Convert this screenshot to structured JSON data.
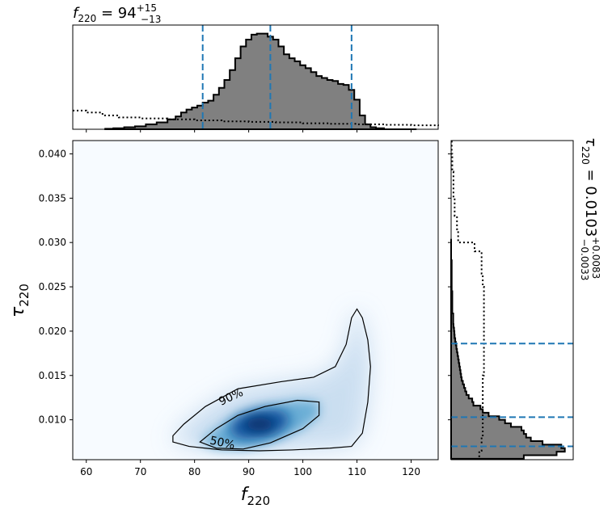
{
  "chart_data": [
    {
      "type": "area",
      "panel": "top-marginal",
      "title": "f_220 = 94 +15 −13",
      "title_parts": {
        "sym": "f",
        "sub": "220",
        "eq": " = 94",
        "sup": "+15",
        "inf": "−13"
      },
      "x_range": [
        57.5,
        125
      ],
      "posterior": {
        "x": [
          64,
          66,
          68,
          70,
          72,
          74,
          76,
          77,
          78,
          79,
          80,
          81,
          82,
          83,
          84,
          85,
          86,
          87,
          88,
          89,
          90,
          91,
          92,
          93,
          94,
          95,
          96,
          97,
          98,
          99,
          100,
          101,
          102,
          103,
          104,
          105,
          106,
          107,
          108,
          109,
          110,
          111,
          112,
          113,
          114,
          116,
          118,
          120
        ],
        "density": [
          0.005,
          0.01,
          0.02,
          0.03,
          0.05,
          0.07,
          0.1,
          0.13,
          0.17,
          0.2,
          0.22,
          0.24,
          0.27,
          0.29,
          0.35,
          0.42,
          0.5,
          0.6,
          0.72,
          0.84,
          0.91,
          0.96,
          0.97,
          0.97,
          0.94,
          0.91,
          0.84,
          0.76,
          0.72,
          0.69,
          0.65,
          0.62,
          0.58,
          0.54,
          0.52,
          0.5,
          0.49,
          0.46,
          0.45,
          0.4,
          0.3,
          0.14,
          0.05,
          0.02,
          0.01,
          0.0,
          0.0,
          0.0
        ]
      },
      "prior_dotted": {
        "x": [
          57.5,
          60,
          63,
          66,
          70,
          75,
          80,
          85,
          90,
          95,
          100,
          105,
          110,
          115,
          120,
          125
        ],
        "density": [
          0.19,
          0.17,
          0.14,
          0.12,
          0.11,
          0.1,
          0.09,
          0.08,
          0.075,
          0.07,
          0.06,
          0.055,
          0.05,
          0.045,
          0.04,
          0.035
        ]
      },
      "credible_lines": [
        81.5,
        94,
        109
      ]
    },
    {
      "type": "heatmap",
      "panel": "joint",
      "xlabel": "f_220",
      "ylabel": "τ_220",
      "xlim": [
        57.5,
        125
      ],
      "ylim": [
        0.0055,
        0.0415
      ],
      "xticks": [
        "60",
        "70",
        "80",
        "90",
        "100",
        "110",
        "120"
      ],
      "yticks": [
        "0.010",
        "0.015",
        "0.020",
        "0.025",
        "0.030",
        "0.035",
        "0.040"
      ],
      "grid": false,
      "density_peak": {
        "x": 92,
        "y": 0.0095
      },
      "contours": [
        {
          "label": "90%",
          "label_at": [
            87,
            0.0122
          ],
          "points": [
            [
              76,
              0.0082
            ],
            [
              78,
              0.0095
            ],
            [
              82,
              0.0115
            ],
            [
              88,
              0.0135
            ],
            [
              96,
              0.0143
            ],
            [
              102,
              0.0148
            ],
            [
              106,
              0.016
            ],
            [
              108,
              0.0185
            ],
            [
              109,
              0.0215
            ],
            [
              110,
              0.0225
            ],
            [
              111,
              0.0215
            ],
            [
              112,
              0.019
            ],
            [
              112.5,
              0.016
            ],
            [
              112,
              0.012
            ],
            [
              111,
              0.0085
            ],
            [
              109,
              0.007
            ],
            [
              105,
              0.0068
            ],
            [
              98,
              0.0066
            ],
            [
              92,
              0.0065
            ],
            [
              85,
              0.0066
            ],
            [
              79,
              0.007
            ],
            [
              76,
              0.0075
            ]
          ]
        },
        {
          "label": "50%",
          "label_at": [
            85,
            0.007
          ],
          "points": [
            [
              81,
              0.0075
            ],
            [
              84,
              0.009
            ],
            [
              88,
              0.0105
            ],
            [
              93,
              0.0115
            ],
            [
              99,
              0.0122
            ],
            [
              103,
              0.012
            ],
            [
              103,
              0.0105
            ],
            [
              100,
              0.009
            ],
            [
              94,
              0.0074
            ],
            [
              89,
              0.0067
            ],
            [
              84,
              0.0068
            ]
          ]
        }
      ]
    },
    {
      "type": "area",
      "panel": "right-marginal",
      "title": "τ_220 = 0.0103 +0.0083 −0.0033",
      "title_parts": {
        "sym": "τ",
        "sub": "220",
        "eq": " = 0.0103",
        "sup": "+0.0083",
        "inf": "−0.0033"
      },
      "y_range": [
        0.0055,
        0.0415
      ],
      "posterior": {
        "y": [
          0.0058,
          0.0062,
          0.0066,
          0.007,
          0.0074,
          0.0078,
          0.0082,
          0.0086,
          0.009,
          0.0094,
          0.0098,
          0.0102,
          0.0106,
          0.011,
          0.0114,
          0.0118,
          0.0122,
          0.0126,
          0.013,
          0.0134,
          0.0138,
          0.0142,
          0.0146,
          0.015,
          0.0154,
          0.0158,
          0.0162,
          0.0166,
          0.017,
          0.0174,
          0.0178,
          0.0182,
          0.0186,
          0.019,
          0.0194,
          0.0198,
          0.0202,
          0.0206,
          0.021,
          0.023,
          0.026,
          0.03
        ],
        "density": [
          0.62,
          0.9,
          0.97,
          0.94,
          0.78,
          0.68,
          0.64,
          0.62,
          0.6,
          0.51,
          0.46,
          0.41,
          0.32,
          0.27,
          0.25,
          0.19,
          0.18,
          0.15,
          0.13,
          0.12,
          0.11,
          0.1,
          0.09,
          0.085,
          0.08,
          0.075,
          0.07,
          0.065,
          0.06,
          0.055,
          0.05,
          0.045,
          0.04,
          0.035,
          0.03,
          0.028,
          0.025,
          0.02,
          0.018,
          0.01,
          0.005,
          0.0
        ]
      },
      "prior_dotted": {
        "y": [
          0.0058,
          0.0065,
          0.008,
          0.01,
          0.015,
          0.02,
          0.025,
          0.0265,
          0.029,
          0.03,
          0.0315,
          0.033,
          0.035,
          0.038,
          0.04,
          0.0415
        ],
        "density": [
          0.24,
          0.26,
          0.27,
          0.27,
          0.28,
          0.28,
          0.27,
          0.26,
          0.2,
          0.06,
          0.05,
          0.03,
          0.02,
          0.01,
          0.005,
          0.003
        ]
      },
      "credible_lines": [
        0.007,
        0.0103,
        0.0186
      ]
    }
  ]
}
